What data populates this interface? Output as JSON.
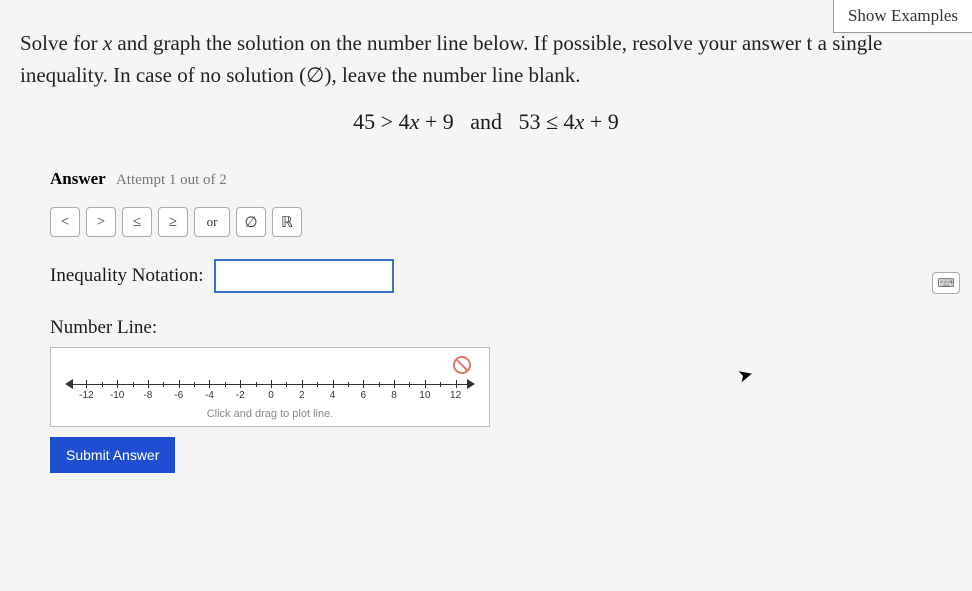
{
  "header": {
    "show_examples": "Show Examples"
  },
  "prompt": {
    "line1_pre": "Solve for ",
    "variable": "x",
    "line1_post": " and graph the solution on the number line below. If possible, resolve your answer t",
    "line2": "a single inequality. In case of no solution (∅), leave the number line blank."
  },
  "math": {
    "expression": "45 > 4x + 9  and  53 ≤ 4x + 9",
    "rendered_parts": [
      "45 > 4",
      "x",
      " + 9",
      "and",
      "53 ≤ 4",
      "x",
      " + 9"
    ]
  },
  "answer": {
    "label": "Answer",
    "attempt": "Attempt 1 out of 2"
  },
  "toolbar": {
    "lt": "<",
    "gt": ">",
    "le": "≤",
    "ge": "≥",
    "or": "or",
    "empty": "∅",
    "reals": "ℝ"
  },
  "inequality": {
    "label": "Inequality Notation:",
    "value": "",
    "placeholder": ""
  },
  "numberline": {
    "label": "Number Line:",
    "hint": "Click and drag to plot line.",
    "ticks": [
      -12,
      -10,
      -8,
      -6,
      -4,
      -2,
      0,
      2,
      4,
      6,
      8,
      10,
      12
    ],
    "min": -13,
    "max": 13,
    "axis_color": "#333333",
    "box_border": "#bbbbbb",
    "box_bg": "#ffffff"
  },
  "submit": {
    "label": "Submit Answer",
    "bg": "#1f4fd1",
    "fg": "#ffffff"
  },
  "colors": {
    "page_bg": "#f5f5f3",
    "input_border": "#3b6fc9",
    "forbid": "#d9796b"
  }
}
